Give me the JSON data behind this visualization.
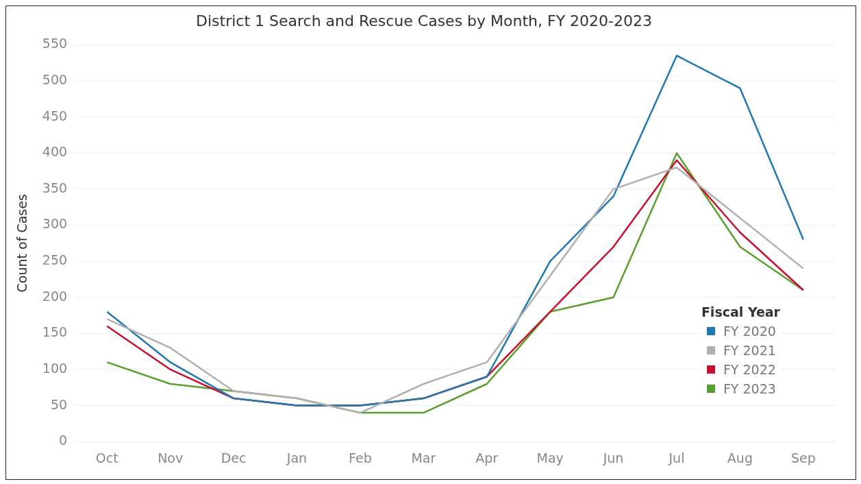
{
  "chart_data": {
    "type": "line",
    "title": "District 1 Search and Rescue Cases by Month, FY 2020-2023",
    "ylabel": "Count of Cases",
    "legend_title": "Fiscal Year",
    "legend": "right",
    "grid": "y",
    "marker": "none",
    "line_style": "solid",
    "categories": [
      "Oct",
      "Nov",
      "Dec",
      "Jan",
      "Feb",
      "Mar",
      "Apr",
      "May",
      "Jun",
      "Jul",
      "Aug",
      "Sep"
    ],
    "ylim": [
      0,
      550
    ],
    "yticks": [
      0,
      50,
      100,
      150,
      200,
      250,
      300,
      350,
      400,
      450,
      500,
      550
    ],
    "series": [
      {
        "name": "FY 2020",
        "color": "#1f77b4",
        "values": [
          180,
          110,
          60,
          50,
          50,
          60,
          90,
          250,
          340,
          535,
          490,
          280
        ]
      },
      {
        "name": "FY 2021",
        "color": "#b0b0b0",
        "values": [
          170,
          130,
          70,
          60,
          40,
          80,
          110,
          230,
          350,
          380,
          310,
          240
        ]
      },
      {
        "name": "FY 2022",
        "color": "#c8102e",
        "values": [
          160,
          100,
          60,
          50,
          50,
          60,
          90,
          180,
          270,
          390,
          290,
          210
        ]
      },
      {
        "name": "FY 2023",
        "color": "#5c9e2e",
        "values": [
          110,
          80,
          70,
          60,
          40,
          40,
          80,
          180,
          200,
          400,
          270,
          210
        ]
      }
    ]
  }
}
